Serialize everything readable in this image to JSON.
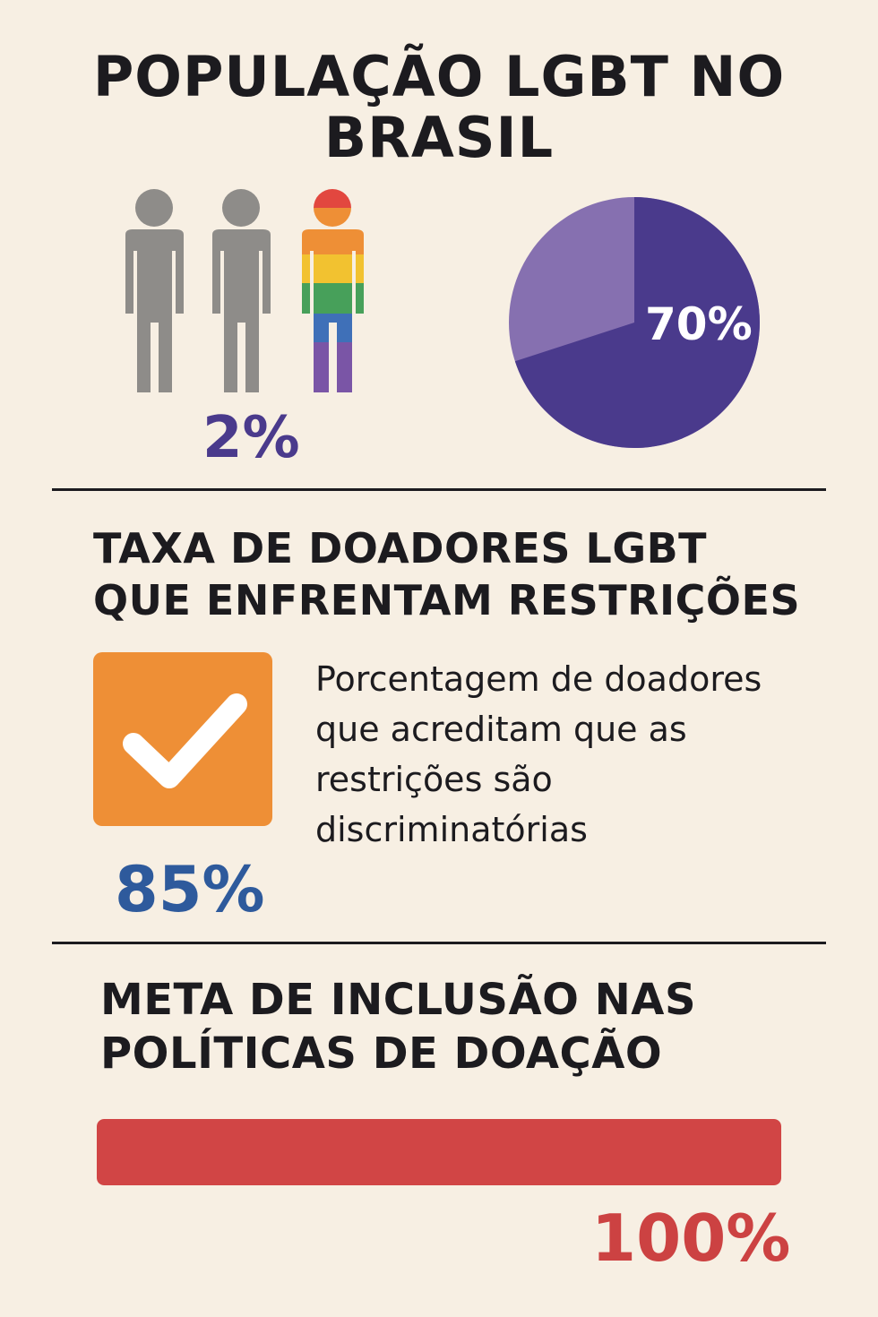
{
  "header": {
    "title": "POPULAÇÃO LGBT NO BRASIL"
  },
  "population": {
    "percent_label": "2%",
    "pie_label": "70%",
    "pie_value": 70,
    "colors": {
      "person_gray": "#8e8c89",
      "pie_main": "#4a3a8c",
      "pie_rest": "#8670b0"
    }
  },
  "restrictions": {
    "title": "TAXA DE DOADORES LGBT QUE ENFRENTAM RESTRIÇÕES",
    "description": "Porcentagem de doadores que acreditam que as restrições são discriminatórias",
    "percent_label": "85%",
    "colors": {
      "check_box": "#ee8f36",
      "percent": "#2e5a9c"
    }
  },
  "goal": {
    "title": "META DE INCLUSÃO NAS POLÍTICAS DE DOAÇÃO",
    "progress": 1.0,
    "percent_label": "100%",
    "colors": {
      "bar": "#d14545",
      "percent": "#cc4242"
    }
  }
}
